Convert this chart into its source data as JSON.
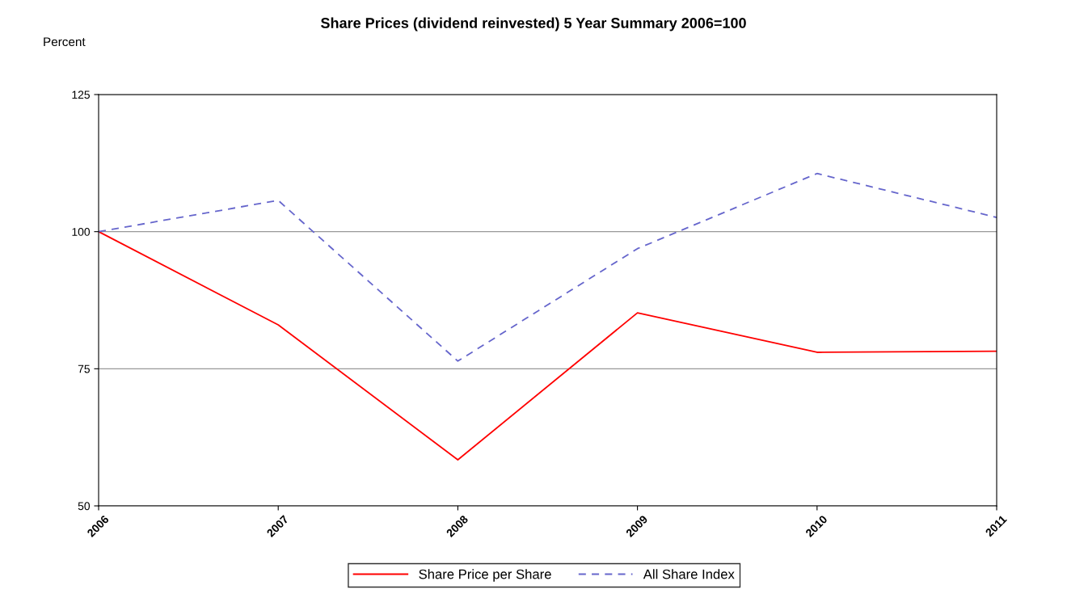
{
  "chart_data": {
    "type": "line",
    "title": "Share Prices (dividend reinvested) 5 Year Summary 2006=100",
    "ylabel": "Percent",
    "x": [
      2006,
      2007,
      2008,
      2009,
      2010,
      2011
    ],
    "series": [
      {
        "name": "Share Price per Share",
        "color": "#ff0000",
        "line_style": "solid",
        "values": [
          100,
          83,
          58.4,
          85.2,
          78,
          78.2
        ]
      },
      {
        "name": "All Share Index",
        "color": "#6666cc",
        "line_style": "dashed",
        "values": [
          100,
          105.7,
          76.4,
          96.9,
          110.6,
          102.6
        ]
      }
    ],
    "xlim": [
      2006,
      2011
    ],
    "xticks": [
      2006,
      2007,
      2008,
      2009,
      2010,
      2011
    ],
    "ylim": [
      50,
      125
    ],
    "yticks": [
      50,
      75,
      100,
      125
    ],
    "grid": "y",
    "legend": "bottom",
    "marker": "none"
  }
}
